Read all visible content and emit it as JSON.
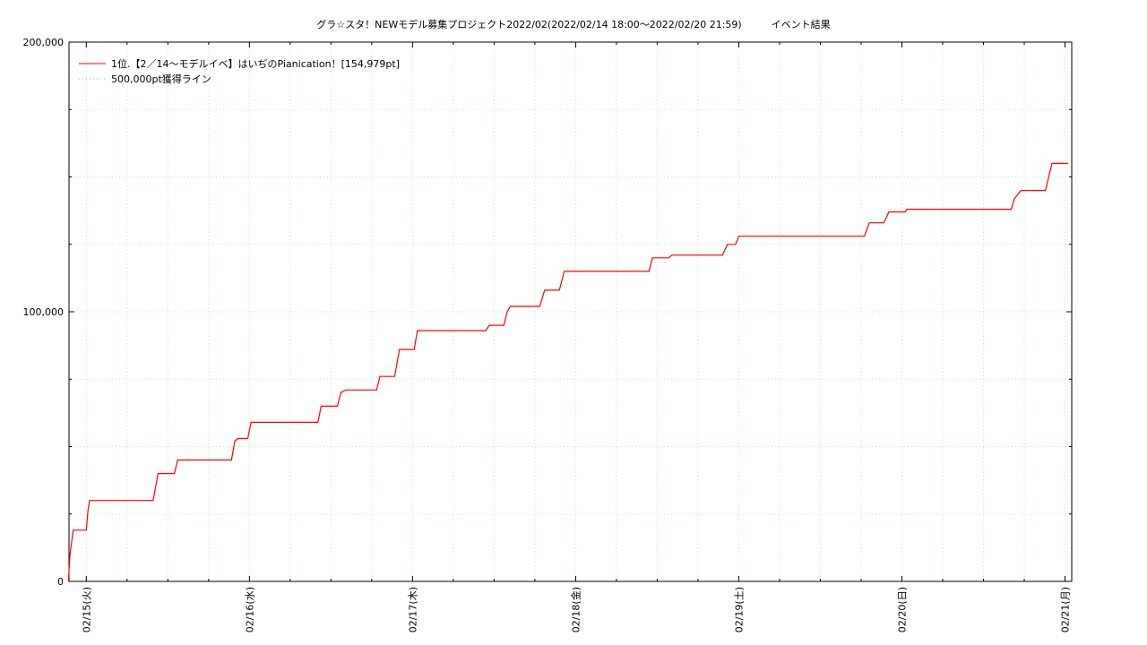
{
  "chart_data": {
    "type": "line",
    "title": "グラ☆スタ！NEWモデル募集プロジェクト2022/02(2022/02/14 18:00〜2022/02/20 21:59)　　　イベント結果",
    "xlabel": "",
    "ylabel": "",
    "ylim": [
      0,
      200000
    ],
    "xlim_days": [
      -0.106,
      6.041
    ],
    "y_ticks": [
      {
        "value": 0,
        "label": "0"
      },
      {
        "value": 100000,
        "label": "100,000"
      },
      {
        "value": 200000,
        "label": "200,000"
      }
    ],
    "x_ticks": [
      {
        "day": 0,
        "label": "02/15(火)"
      },
      {
        "day": 1,
        "label": "02/16(水)"
      },
      {
        "day": 2,
        "label": "02/17(木)"
      },
      {
        "day": 3,
        "label": "02/18(金)"
      },
      {
        "day": 4,
        "label": "02/19(土)"
      },
      {
        "day": 5,
        "label": "02/20(日)"
      },
      {
        "day": 6,
        "label": "02/21(月)"
      }
    ],
    "grid": true,
    "legend_position": "top-left",
    "series": [
      {
        "name": "1位.【2／14〜モデルイベ】はいぢのPianication！[154,979pt]",
        "color": "#ff0000",
        "style": "solid",
        "points": [
          [
            -0.11,
            0
          ],
          [
            -0.1,
            10000
          ],
          [
            -0.08,
            19000
          ],
          [
            0.0,
            19000
          ],
          [
            0.01,
            26000
          ],
          [
            0.02,
            30000
          ],
          [
            0.41,
            30000
          ],
          [
            0.44,
            40000
          ],
          [
            0.54,
            40000
          ],
          [
            0.56,
            45000
          ],
          [
            0.89,
            45000
          ],
          [
            0.91,
            52000
          ],
          [
            0.93,
            53000
          ],
          [
            0.99,
            53000
          ],
          [
            1.01,
            59000
          ],
          [
            1.42,
            59000
          ],
          [
            1.44,
            65000
          ],
          [
            1.54,
            65000
          ],
          [
            1.56,
            70000
          ],
          [
            1.59,
            71000
          ],
          [
            1.78,
            71000
          ],
          [
            1.8,
            76000
          ],
          [
            1.89,
            76000
          ],
          [
            1.92,
            86000
          ],
          [
            2.01,
            86000
          ],
          [
            2.03,
            93000
          ],
          [
            2.45,
            93000
          ],
          [
            2.47,
            95000
          ],
          [
            2.56,
            95000
          ],
          [
            2.58,
            100000
          ],
          [
            2.6,
            102000
          ],
          [
            2.78,
            102000
          ],
          [
            2.81,
            108000
          ],
          [
            2.9,
            108000
          ],
          [
            2.93,
            115000
          ],
          [
            3.45,
            115000
          ],
          [
            3.47,
            120000
          ],
          [
            3.57,
            120000
          ],
          [
            3.59,
            121000
          ],
          [
            3.9,
            121000
          ],
          [
            3.93,
            125000
          ],
          [
            3.98,
            125000
          ],
          [
            4.0,
            128000
          ],
          [
            4.77,
            128000
          ],
          [
            4.8,
            133000
          ],
          [
            4.89,
            133000
          ],
          [
            4.92,
            137000
          ],
          [
            5.02,
            137000
          ],
          [
            5.03,
            138000
          ],
          [
            5.67,
            138000
          ],
          [
            5.69,
            142000
          ],
          [
            5.73,
            145000
          ],
          [
            5.88,
            145000
          ],
          [
            5.9,
            150000
          ],
          [
            5.92,
            155000
          ],
          [
            6.02,
            155000
          ]
        ]
      },
      {
        "name": "500,000pt獲得ライン",
        "color": "#66dd99",
        "style": "dotted",
        "points": []
      }
    ]
  }
}
